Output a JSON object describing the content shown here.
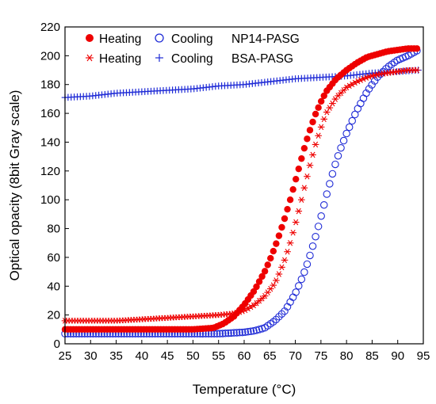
{
  "chart_data": {
    "type": "scatter",
    "title": "",
    "xlabel": "Temperature (°C)",
    "ylabel": "Optical opacity (8bit Gray scale)",
    "xlim": [
      25,
      95
    ],
    "ylim": [
      0,
      220
    ],
    "xticks": [
      25,
      30,
      35,
      40,
      45,
      50,
      55,
      60,
      65,
      70,
      75,
      80,
      85,
      90,
      95
    ],
    "yticks": [
      0,
      20,
      40,
      60,
      80,
      100,
      120,
      140,
      160,
      180,
      200,
      220
    ],
    "grid": false,
    "legend_position": "top-left",
    "legend": [
      {
        "heating_label": "Heating",
        "cooling_label": "Cooling",
        "sample": "NP14-PASG"
      },
      {
        "heating_label": "Heating",
        "cooling_label": "Cooling",
        "sample": "BSA-PASG"
      }
    ],
    "series": [
      {
        "name": "NP14-PASG Heating",
        "marker": "filled-circle",
        "color": "#ee0000",
        "x": [
          25,
          30,
          35,
          40,
          45,
          50,
          54,
          56,
          58,
          60,
          62,
          64,
          65,
          66,
          67,
          68,
          69,
          70,
          71,
          72,
          73,
          74,
          75,
          76,
          78,
          80,
          82,
          84,
          86,
          88,
          90,
          92,
          94
        ],
        "y": [
          10,
          10,
          10,
          10,
          10,
          10,
          11,
          14,
          19,
          27,
          37,
          50,
          58,
          67,
          77,
          88,
          100,
          113,
          126,
          139,
          150,
          160,
          168,
          175,
          184,
          190,
          195,
          199,
          201,
          203,
          204,
          205,
          205
        ]
      },
      {
        "name": "NP14-PASG Cooling",
        "marker": "open-circle",
        "color": "#1f2bd6",
        "x": [
          25,
          30,
          35,
          40,
          45,
          50,
          55,
          60,
          62,
          64,
          66,
          68,
          70,
          71,
          72,
          73,
          74,
          75,
          76,
          77,
          78,
          79,
          80,
          82,
          84,
          86,
          88,
          90,
          92,
          94
        ],
        "y": [
          7,
          7,
          7,
          7,
          7,
          7,
          7,
          8,
          9,
          11,
          16,
          23,
          35,
          43,
          52,
          63,
          75,
          88,
          102,
          115,
          127,
          137,
          146,
          162,
          175,
          185,
          192,
          197,
          200,
          204
        ]
      },
      {
        "name": "BSA-PASG Heating",
        "marker": "asterisk",
        "color": "#ee0000",
        "x": [
          25,
          30,
          35,
          40,
          45,
          50,
          55,
          58,
          60,
          62,
          64,
          66,
          67,
          68,
          69,
          70,
          71,
          72,
          73,
          74,
          75,
          76,
          78,
          80,
          82,
          84,
          86,
          88,
          90,
          92,
          94
        ],
        "y": [
          16,
          16,
          16,
          17,
          18,
          19,
          20,
          21,
          23,
          27,
          33,
          42,
          50,
          59,
          70,
          83,
          97,
          112,
          126,
          139,
          150,
          160,
          171,
          178,
          182,
          185,
          187,
          188,
          189,
          190,
          190
        ]
      },
      {
        "name": "BSA-PASG Cooling",
        "marker": "plus",
        "color": "#1f2bd6",
        "x": [
          25,
          30,
          35,
          40,
          45,
          50,
          55,
          60,
          65,
          70,
          75,
          80,
          85,
          90,
          94
        ],
        "y": [
          171,
          172,
          174,
          175,
          176,
          177,
          179,
          180,
          182,
          184,
          185,
          186,
          188,
          189,
          190
        ]
      }
    ]
  }
}
